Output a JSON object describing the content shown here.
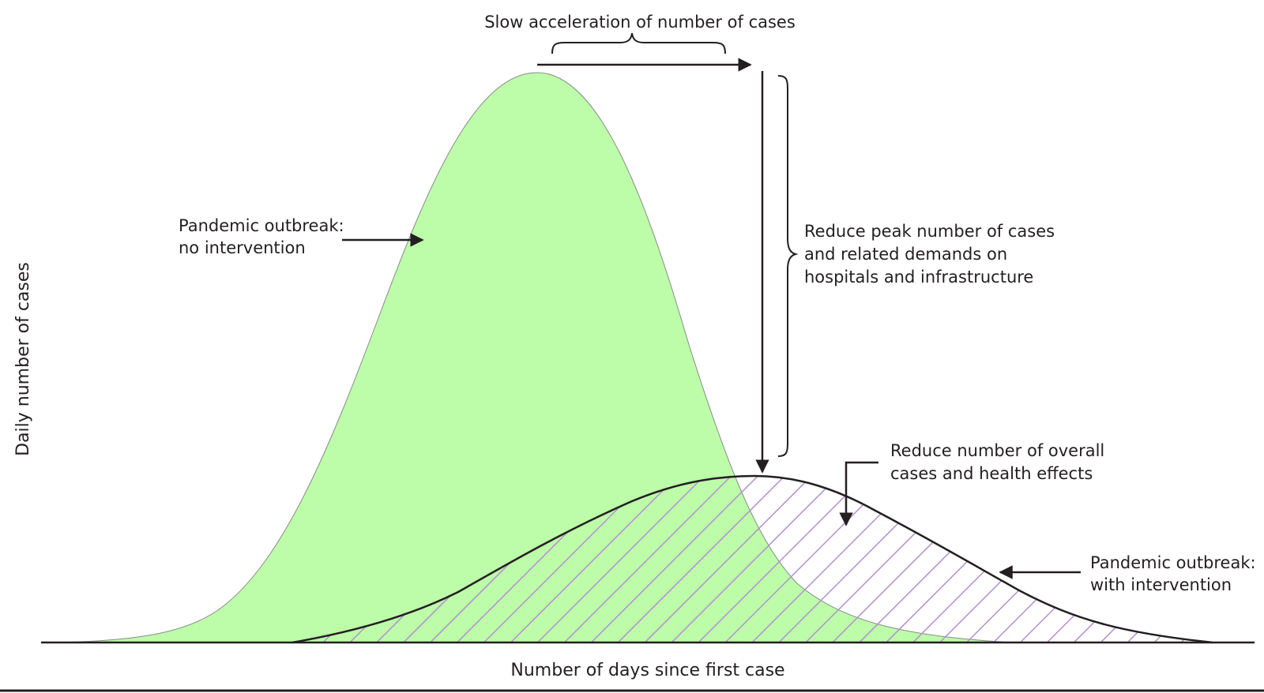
{
  "annotations": {
    "slow_acceleration": "Slow acceleration of number of cases",
    "no_intervention_line1": "Pandemic outbreak:",
    "no_intervention_line2": "no intervention",
    "reduce_peak_line1": "Reduce peak number of cases",
    "reduce_peak_line2": "and related demands on",
    "reduce_peak_line3": "hospitals and infrastructure",
    "reduce_overall_line1": "Reduce number of overall",
    "reduce_overall_line2": "cases and health effects",
    "with_intervention_line1": "Pandemic outbreak:",
    "with_intervention_line2": "with intervention"
  },
  "axes": {
    "xlabel": "Number of days since first case",
    "ylabel": "Daily number of cases"
  },
  "colors": {
    "no_intervention_fill": "#bdfdaa",
    "with_intervention_hatch": "#b48fcf",
    "ink": "#231f20"
  }
}
